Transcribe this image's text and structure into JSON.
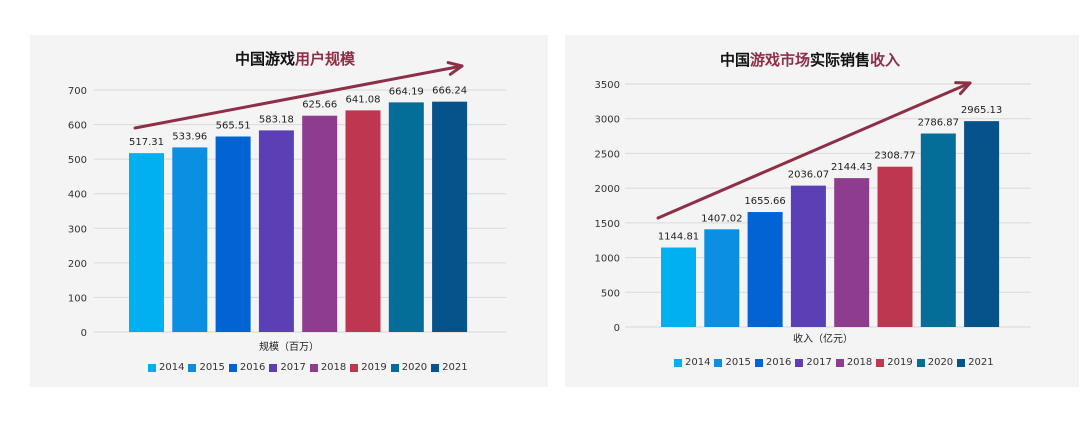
{
  "palette": [
    "#00B0F0",
    "#0B8FE2",
    "#0263D4",
    "#5B3FB5",
    "#8E3C8F",
    "#BE3650",
    "#046E98",
    "#05538A"
  ],
  "title_plain_color": "#111111",
  "title_accent_color": "#8E2F48",
  "arrow_color": "#8E2F48",
  "chart_data": [
    {
      "type": "bar",
      "title_parts": [
        {
          "text": "中国游戏",
          "accent": false
        },
        {
          "text": "用户规模",
          "accent": true
        }
      ],
      "xlabel": "规模（百万）",
      "ylabel": "",
      "ylim": [
        0,
        700
      ],
      "yticks": [
        0,
        100,
        200,
        300,
        400,
        500,
        600,
        700
      ],
      "grid": true,
      "legend_position": "bottom",
      "categories": [
        "2014",
        "2015",
        "2016",
        "2017",
        "2018",
        "2019",
        "2020",
        "2021"
      ],
      "values": [
        517.31,
        533.96,
        565.51,
        583.18,
        625.66,
        641.08,
        664.19,
        666.24
      ],
      "value_labels": [
        "517.31",
        "533.96",
        "565.51",
        "583.18",
        "625.66",
        "641.08",
        "664.19",
        "666.24"
      ]
    },
    {
      "type": "bar",
      "title_parts": [
        {
          "text": "中国",
          "accent": false
        },
        {
          "text": "游戏市场",
          "accent": true
        },
        {
          "text": "实际销售",
          "accent": false
        },
        {
          "text": "收入",
          "accent": true
        }
      ],
      "xlabel": "收入（亿元）",
      "ylabel": "",
      "ylim": [
        0,
        3500
      ],
      "yticks": [
        0,
        500,
        1000,
        1500,
        2000,
        2500,
        3000,
        3500
      ],
      "grid": true,
      "legend_position": "bottom",
      "categories": [
        "2014",
        "2015",
        "2016",
        "2017",
        "2018",
        "2019",
        "2020",
        "2021"
      ],
      "values": [
        1144.81,
        1407.02,
        1655.66,
        2036.07,
        2144.43,
        2308.77,
        2786.87,
        2965.13
      ],
      "value_labels": [
        "1144.81",
        "1407.02",
        "1655.66",
        "2036.07",
        "2144.43",
        "2308.77",
        "2786.87",
        "2965.13"
      ]
    }
  ]
}
